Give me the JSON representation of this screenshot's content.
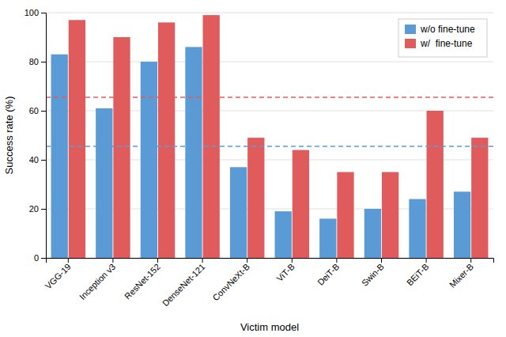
{
  "chart_data": {
    "type": "bar",
    "x_label": "Victim model",
    "y_label": "Success rate (%)",
    "categories": [
      "VGG-19",
      "Inception v3",
      "ResNet-152",
      "DenseNet-121",
      "ConvNeXt-B",
      "ViT-B",
      "DeiT-B",
      "Swin-B",
      "BEiT-B",
      "Mixer-B"
    ],
    "series": [
      {
        "name": "w/o fine-tune",
        "color": "#5b9bd5",
        "values": [
          83,
          61,
          80,
          86,
          37,
          19,
          16,
          20,
          24,
          27
        ],
        "reference_line": 45.5
      },
      {
        "name": "w/  fine-tune",
        "color": "#e05c5c",
        "values": [
          97,
          90,
          96,
          99,
          49,
          44,
          35,
          35,
          60,
          49
        ],
        "reference_line": 65.5
      }
    ],
    "ylim": [
      0,
      100
    ],
    "yticks": [
      0,
      20,
      40,
      60,
      80,
      100
    ],
    "grid": true,
    "legend": "top-right"
  }
}
